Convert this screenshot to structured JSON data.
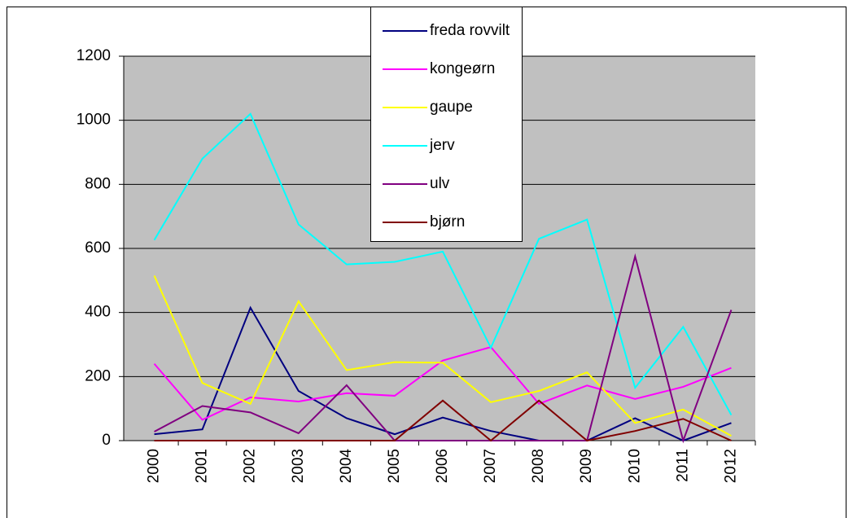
{
  "chart_data": {
    "type": "line",
    "categories": [
      "2000",
      "2001",
      "2002",
      "2003",
      "2004",
      "2005",
      "2006",
      "2007",
      "2008",
      "2009",
      "2010",
      "2011",
      "2012"
    ],
    "series": [
      {
        "name": "freda rovvilt",
        "color": "#000080",
        "values": [
          20,
          35,
          415,
          155,
          70,
          20,
          72,
          30,
          0,
          0,
          70,
          0,
          55
        ]
      },
      {
        "name": "kongeørn",
        "color": "#ff00ff",
        "values": [
          240,
          65,
          135,
          122,
          148,
          140,
          250,
          292,
          115,
          172,
          130,
          168,
          227
        ]
      },
      {
        "name": "gaupe",
        "color": "#ffff00",
        "values": [
          515,
          180,
          115,
          435,
          220,
          245,
          243,
          120,
          155,
          213,
          55,
          97,
          15
        ]
      },
      {
        "name": "jerv",
        "color": "#00ffff",
        "values": [
          626,
          880,
          1020,
          675,
          550,
          558,
          590,
          290,
          630,
          690,
          165,
          355,
          80
        ]
      },
      {
        "name": "ulv",
        "color": "#800080",
        "values": [
          28,
          108,
          88,
          23,
          173,
          0,
          0,
          0,
          0,
          0,
          575,
          0,
          408
        ]
      },
      {
        "name": "bjørn",
        "color": "#800000",
        "values": [
          0,
          0,
          0,
          0,
          0,
          0,
          125,
          0,
          125,
          0,
          30,
          68,
          0
        ]
      }
    ],
    "ylim": [
      0,
      1200
    ],
    "yticks": [
      0,
      200,
      400,
      600,
      800,
      1000,
      1200
    ],
    "grid": true,
    "plot_background": "#c0c0c0",
    "legend": "top"
  }
}
